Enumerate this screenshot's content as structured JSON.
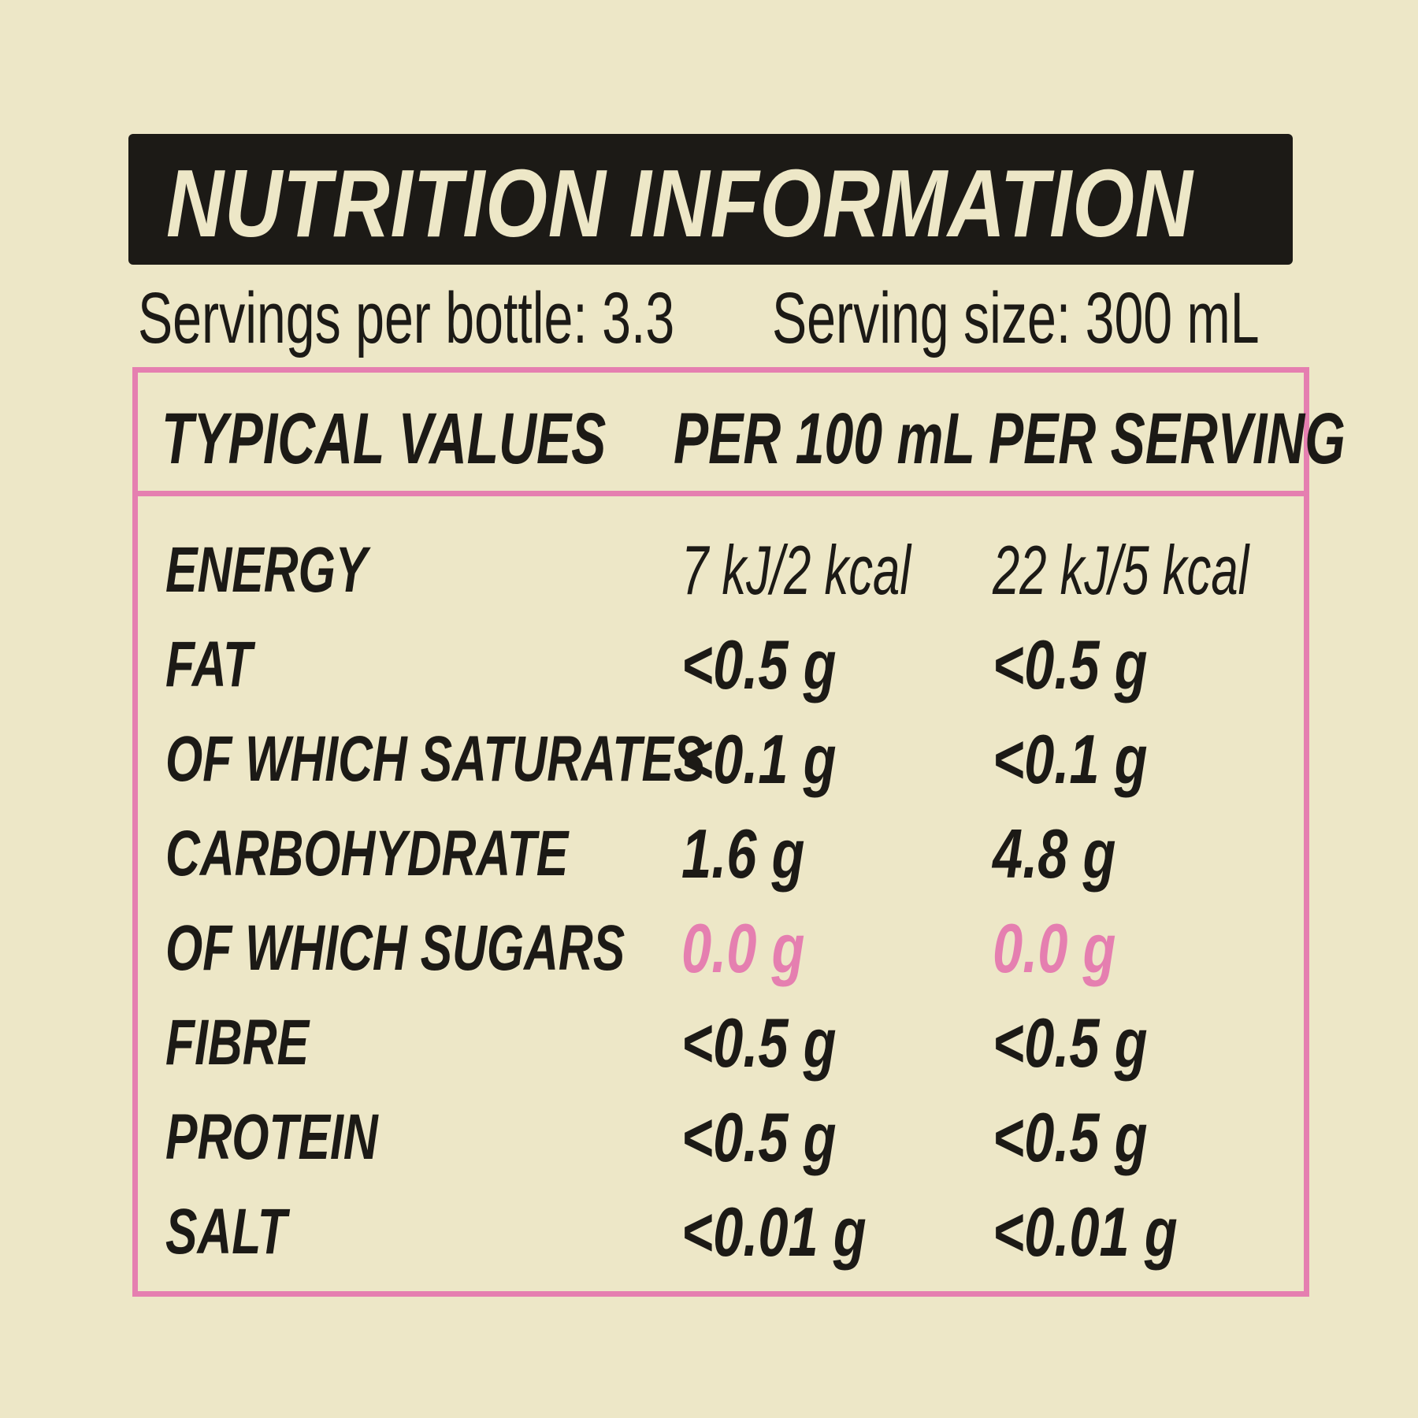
{
  "title": "NUTRITION INFORMATION",
  "servings_per_bottle": "Servings per bottle: 3.3",
  "serving_size": "Serving size: 300 mL",
  "headers": [
    "TYPICAL VALUES",
    "PER 100 mL",
    "PER SERVING"
  ],
  "rows": [
    {
      "label": "ENERGY",
      "per_100ml": "7 kJ/2 kcal",
      "per_serving": "22 kJ/5 kcal"
    },
    {
      "label": "FAT",
      "per_100ml": "<0.5 g",
      "per_serving": "<0.5 g"
    },
    {
      "label": "OF WHICH SATURATES",
      "per_100ml": "<0.1 g",
      "per_serving": "<0.1 g"
    },
    {
      "label": "CARBOHYDRATE",
      "per_100ml": "1.6 g",
      "per_serving": "4.8 g"
    },
    {
      "label": "OF WHICH SUGARS",
      "per_100ml": "0.0 g",
      "per_serving": "0.0 g",
      "highlight": true
    },
    {
      "label": "FIBRE",
      "per_100ml": "<0.5 g",
      "per_serving": "<0.5 g"
    },
    {
      "label": "PROTEIN",
      "per_100ml": "<0.5 g",
      "per_serving": "<0.5 g"
    },
    {
      "label": "SALT",
      "per_100ml": "<0.01 g",
      "per_serving": "<0.01 g"
    }
  ],
  "colors": {
    "background": "#ede7c7",
    "text": "#1c1a16",
    "accent": "#e57fb0"
  }
}
